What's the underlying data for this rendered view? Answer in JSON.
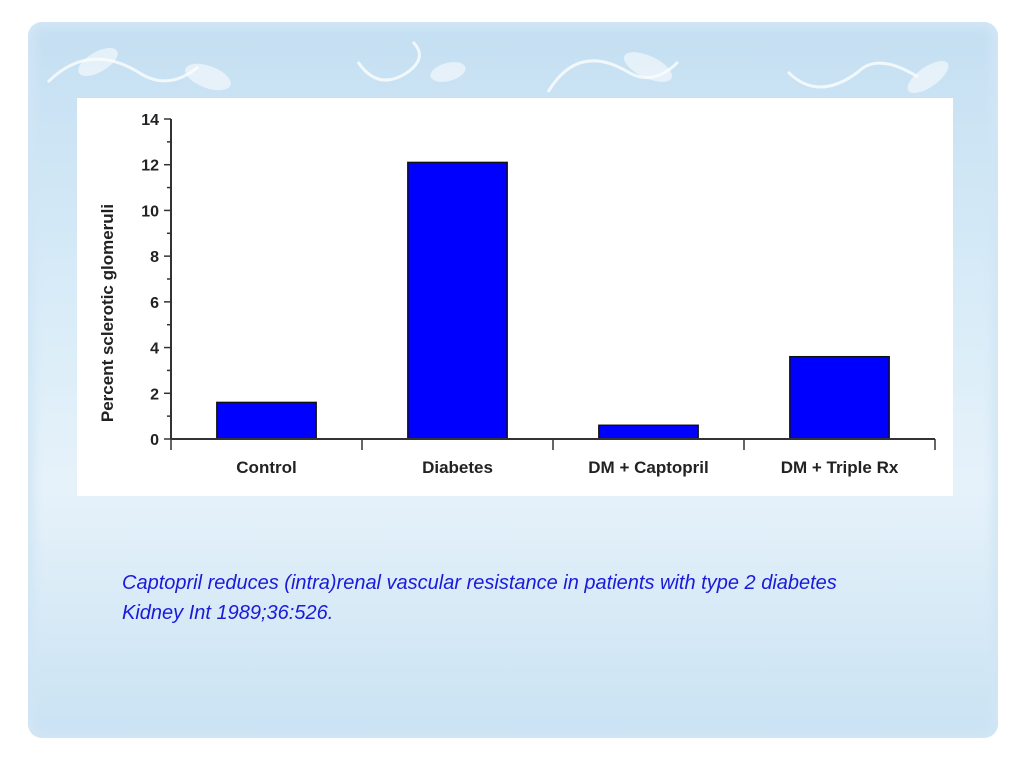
{
  "chart_data": {
    "type": "bar",
    "categories": [
      "Control",
      "Diabetes",
      "DM + Captopril",
      "DM + Triple Rx"
    ],
    "values": [
      1.6,
      12.1,
      0.6,
      3.6
    ],
    "ylabel": "Percent sclerotic glomeruli",
    "xlabel": "",
    "ylim": [
      0,
      14
    ],
    "yticks": [
      0,
      2,
      4,
      6,
      8,
      10,
      12,
      14
    ],
    "bar_color": "#0000ff",
    "grid": false
  },
  "caption": {
    "line1": "Captopril reduces (intra)renal vascular resistance in patients with type 2 diabetes",
    "line2": "Kidney Int 1989;36:526."
  },
  "colors": {
    "caption_text": "#1a1adb",
    "background": "#d9ecf8"
  }
}
